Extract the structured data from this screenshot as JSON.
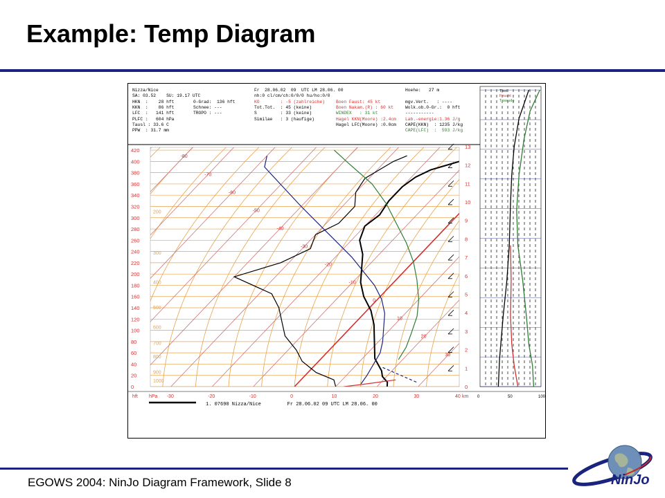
{
  "slide": {
    "title": "Example: Temp Diagram",
    "footer": "EGOWS 2004: NinJo Diagram Framework, Slide 8",
    "logo_text": "NinJo"
  },
  "header": {
    "col1": [
      "Nizza/Nice",
      "SA: 03.52    SU: 19.17 UTC",
      "HKN  :    28 hft",
      "KKN  :    86 hft",
      "LFC  :   141 hft",
      "PLFC :   604 hPa",
      "Tausl : 33.6 C",
      "PPW  : 31.7 mm"
    ],
    "col2": [
      "",
      "",
      "0-Grad:  136 hft",
      "Schnee: ---",
      "TROPO : ---"
    ],
    "col3": [
      "Fr  28.06.02  09  UTC LM 28.06. 00",
      "nh:0 cl/cm/ch:0/0/0 hu/ho:0/0",
      "KO        : -5 (zahlreiche)",
      "Tot.Tot.  : 45 (keine)",
      "S         : 33 (keine)",
      "Similae   : 3 (haufige)"
    ],
    "col4": [
      "",
      "",
      "Boen Faust: 45 kt",
      "Boen Nakam.(R) : 60 kt",
      "WINDEX   : 31 kt",
      "Hagel KKN(Moore) :2.4cm",
      "Hagel LFC(Moore) :0.0cm"
    ],
    "col5": [
      "Hoehe:   27 m",
      "",
      "mgv.Vert.   : ----",
      "Wolk.ob.0-Gr.:  0 hft",
      "-----------",
      "Lab.-energie:1.36 J/g",
      "CAPE(KKN)  : 1235 J/kg",
      "CAPE(LFC)  :  593 J/kg"
    ],
    "col3_colors": [
      "#000000",
      "#000000",
      "#d32f2f",
      "#000000",
      "#000000",
      "#000000"
    ],
    "col4_colors": [
      "#000000",
      "#000000",
      "#d32f2f",
      "#d32f2f",
      "#2e7d32",
      "#d32f2f",
      "#000000"
    ],
    "col5_colors": [
      "#000000",
      "#000000",
      "#000000",
      "#000000",
      "#000000",
      "#d32f2f",
      "#000000",
      "#2e7d32"
    ]
  },
  "side_panel_legend": [
    "Tpot",
    "Feucht",
    "Tpseudo"
  ],
  "side_panel_legend_colors": [
    "#000000",
    "#d32f2f",
    "#2e7d32"
  ],
  "footer_line": {
    "label": "1. 07690 Nizza/Nice         Fr 28.06.02 09 UTC LM 28.06. 00"
  },
  "chart_data": {
    "type": "line",
    "skew_t": true,
    "y_label_left": [
      "hft",
      "hPa"
    ],
    "y_label_right": "km",
    "hft_ticks": [
      0,
      20,
      40,
      60,
      80,
      100,
      120,
      140,
      160,
      180,
      200,
      220,
      240,
      260,
      280,
      300,
      320,
      340,
      360,
      380,
      400,
      420
    ],
    "hpa_ticks": [
      1000,
      900,
      800,
      700,
      600,
      500,
      400,
      300,
      200
    ],
    "km_ticks": [
      0,
      1,
      2,
      3,
      4,
      5,
      6,
      7,
      8,
      9,
      10,
      11,
      12,
      13
    ],
    "x_ticks": [
      -30,
      -20,
      -10,
      0,
      10,
      20,
      30,
      40
    ],
    "isotherm_labels": [
      -80,
      -70,
      -60,
      -50,
      -40,
      -30,
      -20,
      -10,
      0,
      10,
      20,
      30,
      40
    ],
    "side_x_ticks": [
      0,
      50,
      100
    ],
    "xlim": [
      -35,
      40
    ],
    "hft_lim": [
      0,
      425
    ],
    "series": [
      {
        "name": "",
        "color": "#000000",
        "points": [
          [
            22.5,
            0
          ],
          [
            21.5,
            8
          ],
          [
            19,
            18
          ],
          [
            17.5,
            28
          ],
          [
            13,
            50
          ],
          [
            9,
            80
          ],
          [
            5,
            110
          ],
          [
            1,
            135
          ],
          [
            -4,
            160
          ],
          [
            -8,
            185
          ],
          [
            -11,
            210
          ],
          [
            -14,
            235
          ],
          [
            -18,
            260
          ],
          [
            -20,
            285
          ],
          [
            -19,
            305
          ],
          [
            -20,
            330
          ],
          [
            -20,
            355
          ],
          [
            -19,
            372
          ],
          [
            -17,
            385
          ],
          [
            -12,
            400
          ],
          [
            -10,
            408
          ],
          [
            -5,
            420
          ]
        ]
      },
      {
        "name": "",
        "color": "#000000",
        "points": [
          [
            10,
            0
          ],
          [
            8,
            12
          ],
          [
            2,
            25
          ],
          [
            -4,
            45
          ],
          [
            -8,
            65
          ],
          [
            -14,
            90
          ],
          [
            -18,
            115
          ],
          [
            -22,
            140
          ],
          [
            -27,
            165
          ],
          [
            -40,
            195
          ],
          [
            -32,
            220
          ],
          [
            -28,
            245
          ],
          [
            -30,
            270
          ],
          [
            -27,
            290
          ],
          [
            -27,
            320
          ],
          [
            -30,
            345
          ],
          [
            -31,
            370
          ],
          [
            -28,
            400
          ],
          [
            -26,
            410
          ]
        ]
      },
      {
        "name": "",
        "color": "#1a237e",
        "points": [
          [
            15.5,
            5
          ],
          [
            15,
            20
          ],
          [
            14,
            40
          ],
          [
            13,
            60
          ],
          [
            11,
            80
          ],
          [
            8,
            105
          ],
          [
            5,
            130
          ],
          [
            1,
            155
          ],
          [
            -4,
            180
          ],
          [
            -10,
            205
          ],
          [
            -16,
            230
          ],
          [
            -24,
            260
          ],
          [
            -32,
            290
          ],
          [
            -40,
            320
          ],
          [
            -49,
            355
          ],
          [
            -58,
            390
          ],
          [
            -60,
            410
          ]
        ]
      },
      {
        "name": "",
        "color": "#2e7d32",
        "points": [
          [
            19,
            48
          ],
          [
            18,
            70
          ],
          [
            16,
            95
          ],
          [
            13.5,
            125
          ],
          [
            10,
            155
          ],
          [
            5,
            190
          ],
          [
            0,
            222
          ],
          [
            -6,
            255
          ],
          [
            -13,
            290
          ],
          [
            -20,
            325
          ],
          [
            -28,
            360
          ],
          [
            -38,
            395
          ],
          [
            -45,
            420
          ]
        ]
      },
      {
        "name": "",
        "color": "#d32f2f",
        "points": [
          [
            12,
            0
          ],
          [
            17,
            5
          ],
          [
            23,
            12
          ]
        ]
      },
      {
        "name": "",
        "color": "#1a237e",
        "dashed": true,
        "points": [
          [
            17,
            34
          ],
          [
            29,
            7
          ]
        ]
      }
    ],
    "side_series": [
      {
        "name": "Tpot",
        "color": "#000000",
        "points": [
          [
            30,
            0
          ],
          [
            32,
            40
          ],
          [
            38,
            100
          ],
          [
            44,
            150
          ],
          [
            48,
            200
          ],
          [
            50,
            260
          ],
          [
            52,
            300
          ],
          [
            56,
            340
          ],
          [
            64,
            380
          ],
          [
            72,
            400
          ],
          [
            80,
            420
          ]
        ]
      },
      {
        "name": "Feucht",
        "color": "#d32f2f",
        "points": [
          [
            62,
            0
          ],
          [
            56,
            30
          ],
          [
            52,
            60
          ],
          [
            50,
            100
          ],
          [
            51,
            150
          ],
          [
            50,
            200
          ]
        ]
      },
      {
        "name": "Tpseudo",
        "color": "#2e7d32",
        "points": [
          [
            88,
            0
          ],
          [
            86,
            30
          ],
          [
            80,
            60
          ],
          [
            76,
            100
          ],
          [
            70,
            150
          ],
          [
            62,
            200
          ],
          [
            60,
            250
          ],
          [
            64,
            300
          ],
          [
            72,
            350
          ],
          [
            82,
            390
          ],
          [
            98,
            420
          ]
        ]
      }
    ]
  }
}
